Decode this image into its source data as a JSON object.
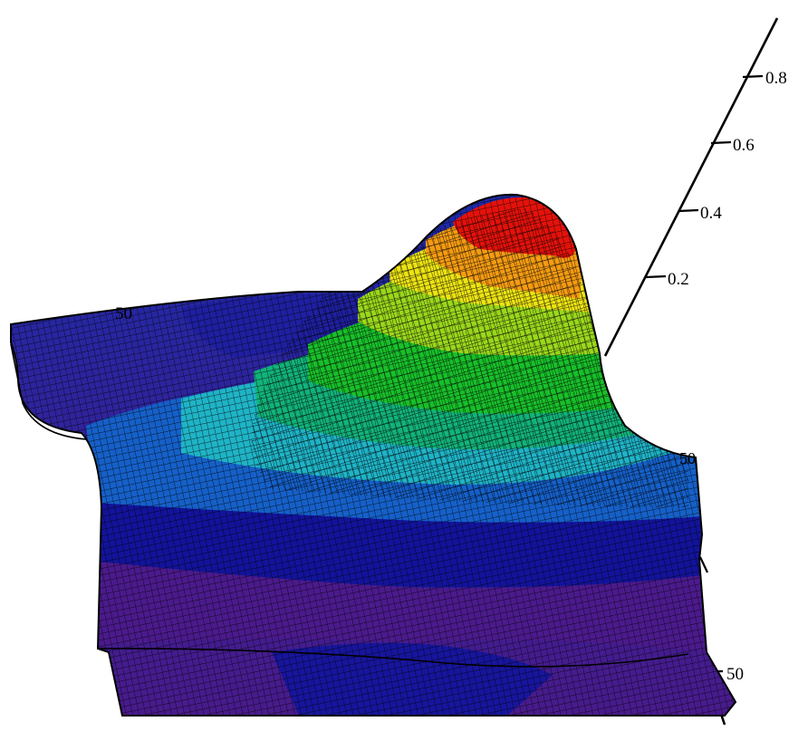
{
  "chart_data": {
    "type": "surface",
    "title": "",
    "z_axis": {
      "ticks": [
        "0.8",
        "0.6",
        "0.4",
        "0.2"
      ],
      "tick_values": [
        0.8,
        0.6,
        0.4,
        0.2
      ],
      "range": [
        0,
        0.9
      ]
    },
    "x_axis": {
      "ticks": [
        "50"
      ]
    },
    "y_axis": {
      "ticks": [
        "50",
        "50"
      ]
    },
    "surface": {
      "description": "single smooth peak surface on a grid, max near 0.9",
      "peak_value": 0.9,
      "colormap": [
        "#4b1a8c",
        "#1f1f9e",
        "#1560c8",
        "#1fb8c4",
        "#19c24a",
        "#a8e01a",
        "#f0e010",
        "#f5a010",
        "#f04a0a",
        "#e00a0a"
      ]
    },
    "grid": true,
    "wireframe_color": "#000000"
  }
}
